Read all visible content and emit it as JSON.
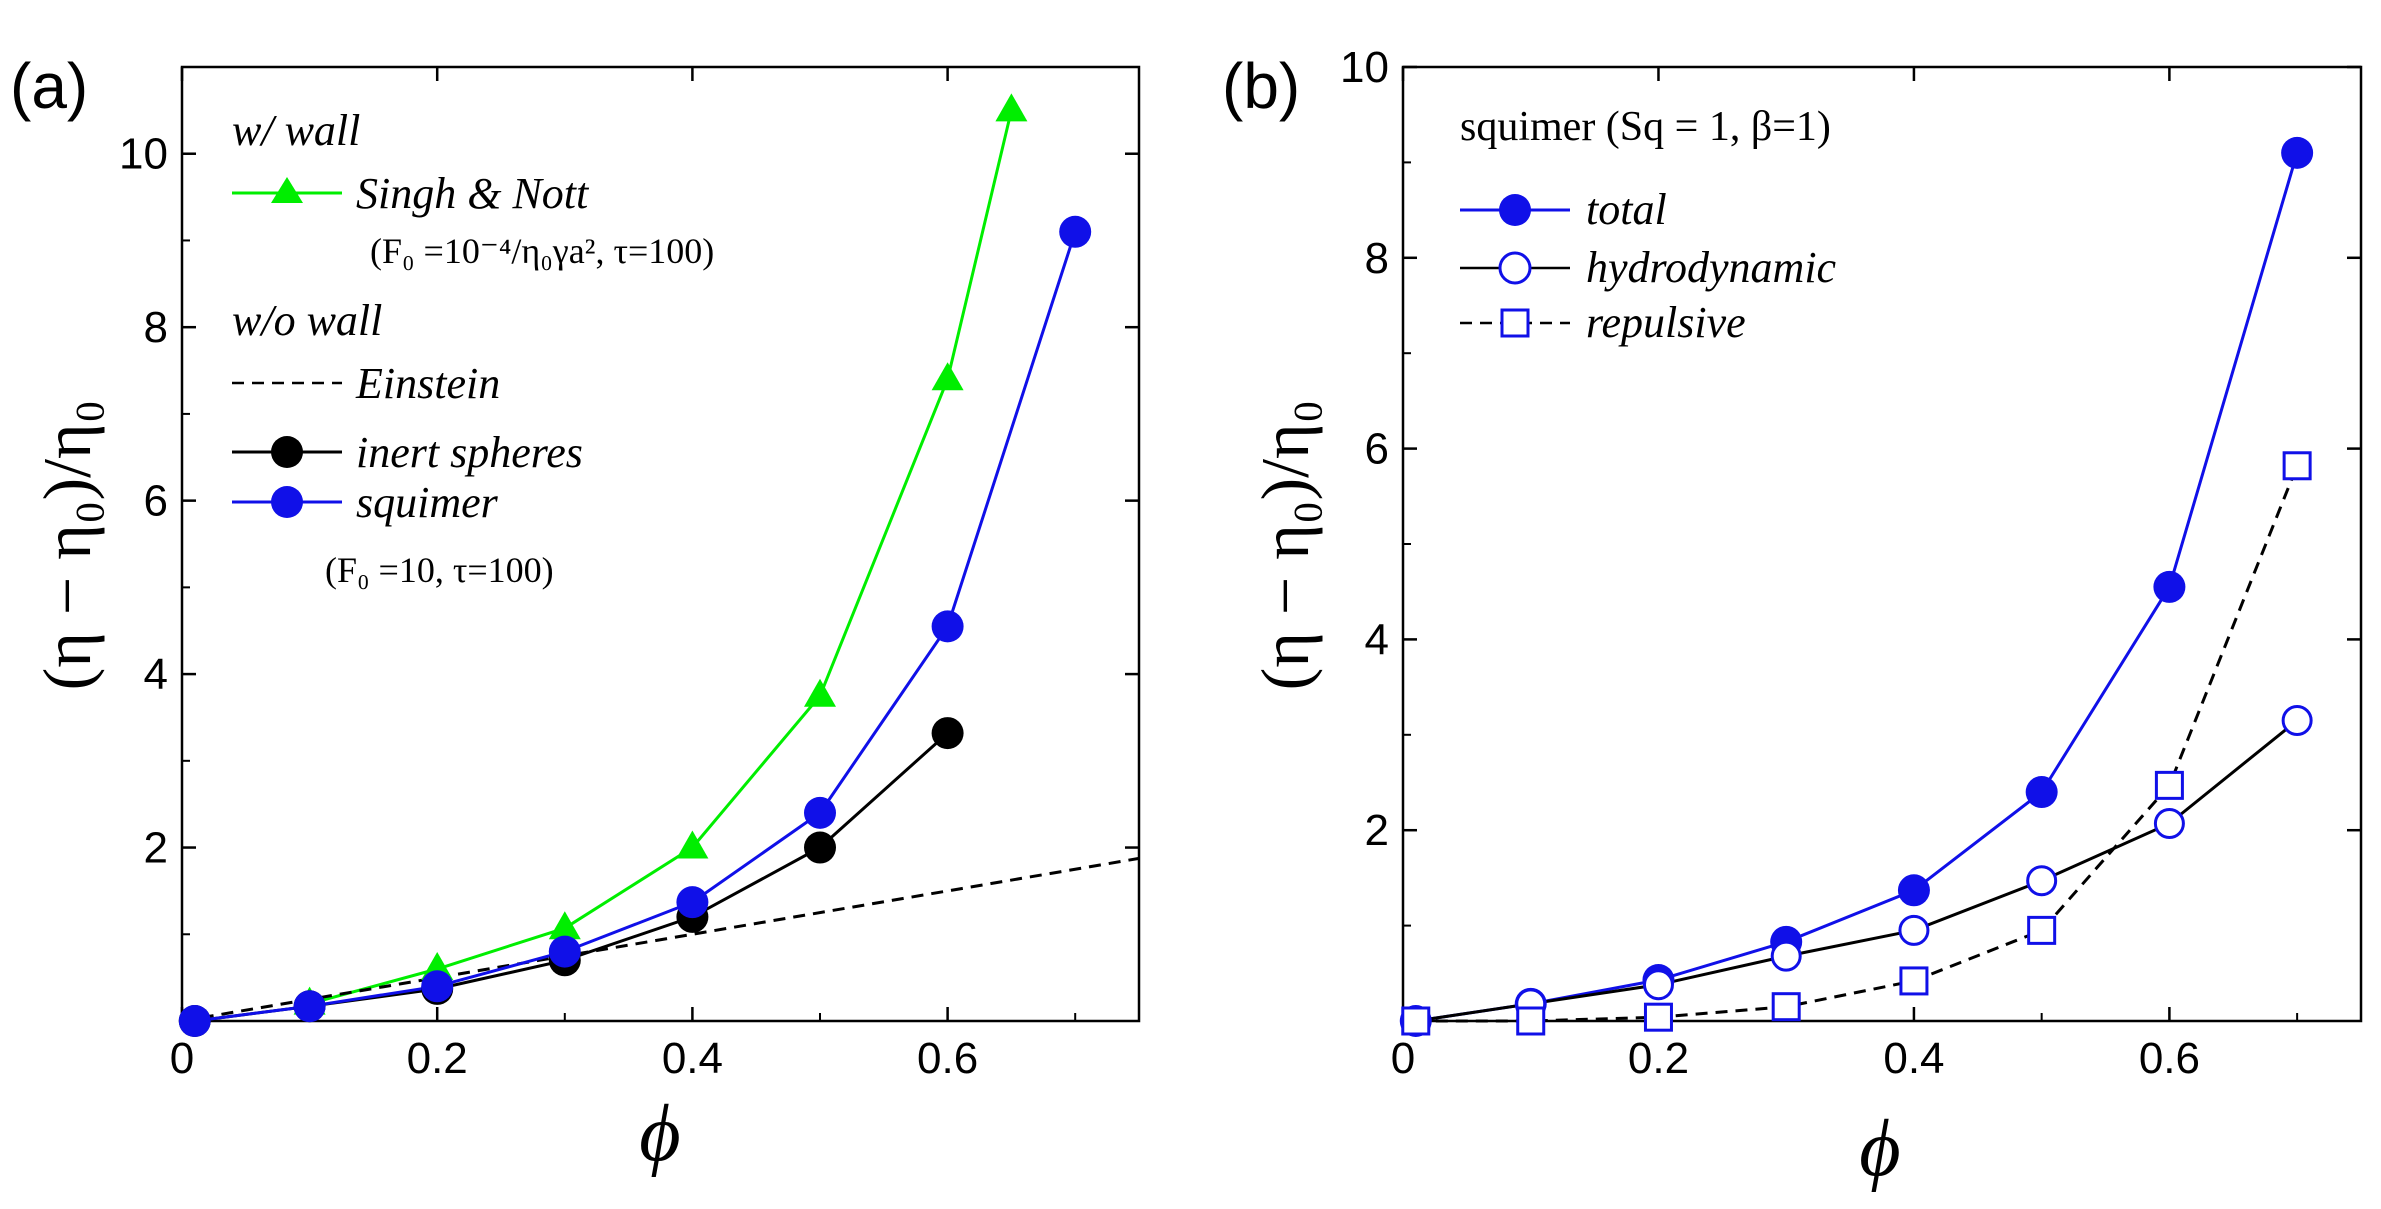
{
  "chart_data": [
    {
      "type": "line",
      "panel_label": "(a)",
      "xlabel": "ϕ",
      "ylabel": "(η − η₀)/η₀",
      "xlim": [
        0,
        0.75
      ],
      "ylim": [
        0,
        11
      ],
      "xticks": [
        {
          "value": 0,
          "label": "0"
        },
        {
          "value": 0.2,
          "label": "0.2"
        },
        {
          "value": 0.4,
          "label": "0.4"
        },
        {
          "value": 0.6,
          "label": "0.6"
        }
      ],
      "yticks": [
        {
          "value": 2,
          "label": "2"
        },
        {
          "value": 4,
          "label": "4"
        },
        {
          "value": 6,
          "label": "6"
        },
        {
          "value": 8,
          "label": "8"
        },
        {
          "value": 10,
          "label": "10"
        }
      ],
      "legend_headers": {
        "with_wall": "w/ wall",
        "without_wall": "w/o wall"
      },
      "legend_params": {
        "singh_nott": "(F₀ =10⁻⁴/η₀γa², τ=100)",
        "squimer": "(F₀ =10, τ=100)"
      },
      "series": [
        {
          "name": "Singh & Nott",
          "color": "#00ee00",
          "marker": "triangle",
          "dash": "solid",
          "x": [
            0.1,
            0.2,
            0.3,
            0.4,
            0.5,
            0.6,
            0.65
          ],
          "y": [
            0.2,
            0.6,
            1.07,
            2.0,
            3.75,
            7.4,
            10.5
          ]
        },
        {
          "name": "Einstein",
          "color": "#000000",
          "marker": "none",
          "dash": "dashed",
          "x": [
            0,
            0.75
          ],
          "y": [
            0,
            1.875
          ]
        },
        {
          "name": "inert spheres",
          "color": "#000000",
          "marker": "circle",
          "dash": "solid",
          "x": [
            0.01,
            0.1,
            0.2,
            0.3,
            0.4,
            0.5,
            0.6
          ],
          "y": [
            0.0,
            0.17,
            0.37,
            0.7,
            1.2,
            2.0,
            3.32
          ]
        },
        {
          "name": "squimer",
          "color": "#1010e8",
          "marker": "circle",
          "dash": "solid",
          "x": [
            0.01,
            0.1,
            0.2,
            0.3,
            0.4,
            0.5,
            0.6,
            0.7
          ],
          "y": [
            0.0,
            0.17,
            0.4,
            0.8,
            1.37,
            2.4,
            4.55,
            9.1
          ]
        }
      ]
    },
    {
      "type": "line",
      "panel_label": "(b)",
      "title": "squimer (Sq = 1,  β=1)",
      "xlabel": "ϕ",
      "ylabel": "(η − η₀)/η₀",
      "xlim": [
        0,
        0.75
      ],
      "ylim": [
        0,
        10
      ],
      "xticks": [
        {
          "value": 0,
          "label": "0"
        },
        {
          "value": 0.2,
          "label": "0.2"
        },
        {
          "value": 0.4,
          "label": "0.4"
        },
        {
          "value": 0.6,
          "label": "0.6"
        }
      ],
      "yticks": [
        {
          "value": 2,
          "label": "2"
        },
        {
          "value": 4,
          "label": "4"
        },
        {
          "value": 6,
          "label": "6"
        },
        {
          "value": 8,
          "label": "8"
        },
        {
          "value": 10,
          "label": "10"
        }
      ],
      "series": [
        {
          "name": "total",
          "color": "#1010e8",
          "marker": "circle",
          "dash": "solid",
          "x": [
            0.01,
            0.1,
            0.2,
            0.3,
            0.4,
            0.5,
            0.6,
            0.7
          ],
          "y": [
            0.0,
            0.18,
            0.43,
            0.83,
            1.37,
            2.4,
            4.55,
            9.1
          ]
        },
        {
          "name": "hydrodynamic",
          "color": "#000000",
          "stroke": "#1010e8",
          "marker": "open-circle",
          "dash": "solid",
          "x": [
            0.01,
            0.1,
            0.2,
            0.3,
            0.4,
            0.5,
            0.6,
            0.7
          ],
          "y": [
            0.0,
            0.18,
            0.38,
            0.68,
            0.95,
            1.47,
            2.07,
            3.15
          ]
        },
        {
          "name": "repulsive",
          "color": "#000000",
          "stroke": "#1010e8",
          "marker": "open-square",
          "dash": "dashed",
          "x": [
            0.01,
            0.1,
            0.2,
            0.3,
            0.4,
            0.5,
            0.6,
            0.7
          ],
          "y": [
            0.0,
            0.0,
            0.04,
            0.15,
            0.42,
            0.95,
            2.47,
            5.82
          ]
        }
      ]
    }
  ]
}
